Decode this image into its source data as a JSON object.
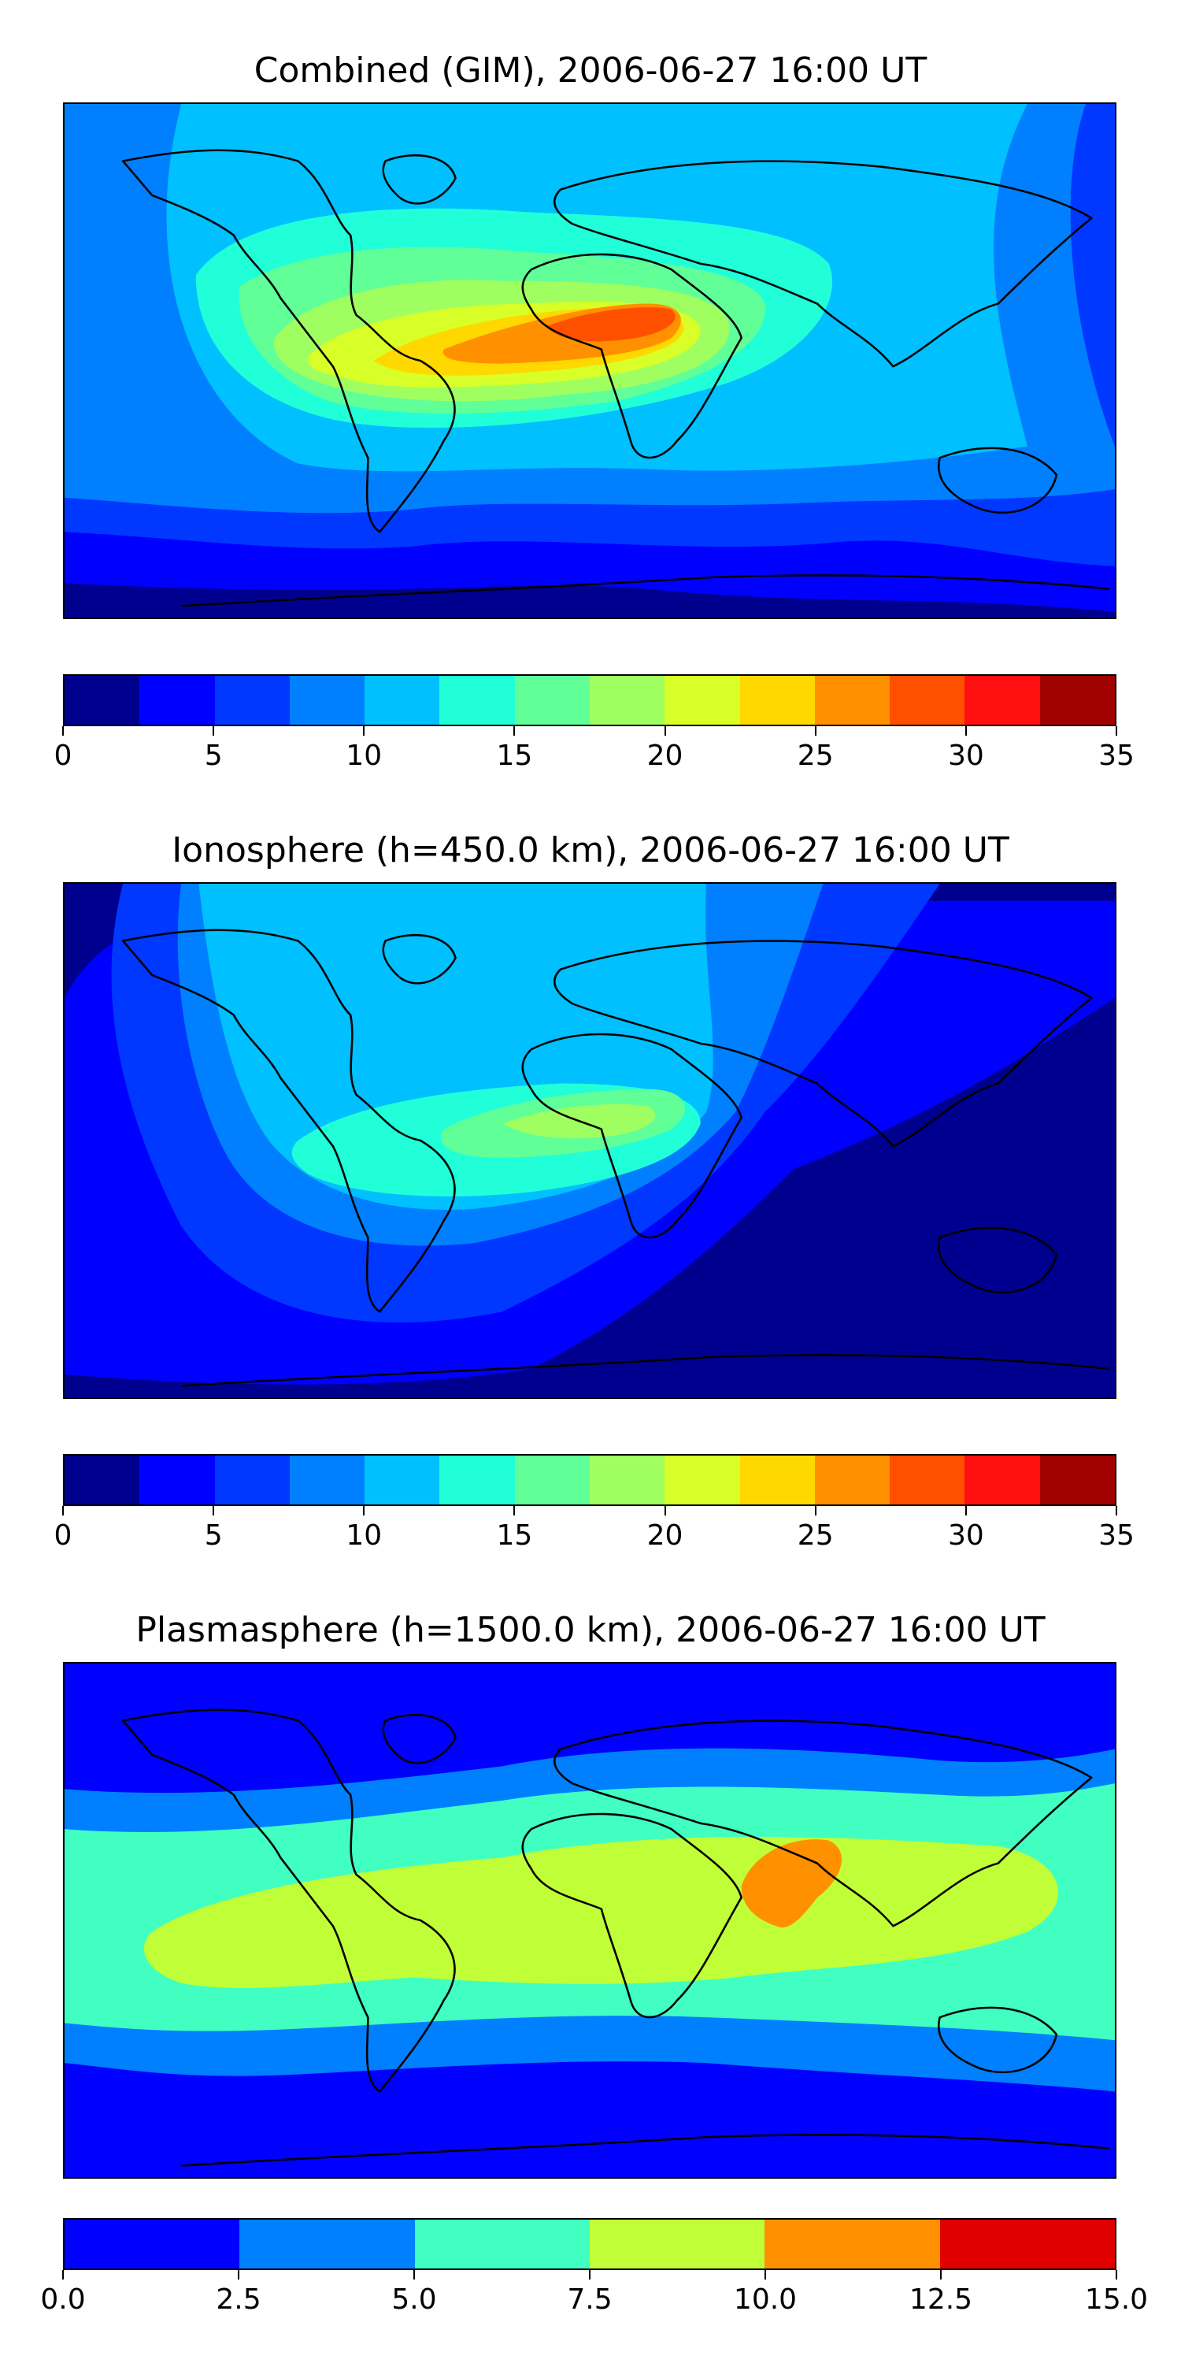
{
  "panels": [
    {
      "id": "combined",
      "title": "Combined (GIM), 2006-06-27 16:00 UT",
      "colorbar": {
        "colors": [
          "#00008f",
          "#0000ff",
          "#0038ff",
          "#0080ff",
          "#00c0ff",
          "#20ffd8",
          "#60ff98",
          "#a0ff60",
          "#d8ff28",
          "#ffd800",
          "#ff9000",
          "#ff5000",
          "#ff1010",
          "#a00000"
        ],
        "ticks": [
          "0",
          "5",
          "10",
          "15",
          "20",
          "25",
          "30",
          "35"
        ],
        "range": [
          0,
          35
        ]
      }
    },
    {
      "id": "ionosphere",
      "title": "Ionosphere  (h=450.0 km), 2006-06-27 16:00 UT",
      "colorbar": {
        "colors": [
          "#00008f",
          "#0000ff",
          "#0038ff",
          "#0080ff",
          "#00c0ff",
          "#20ffd8",
          "#60ff98",
          "#a0ff60",
          "#d8ff28",
          "#ffd800",
          "#ff9000",
          "#ff5000",
          "#ff1010",
          "#a00000"
        ],
        "ticks": [
          "0",
          "5",
          "10",
          "15",
          "20",
          "25",
          "30",
          "35"
        ],
        "range": [
          0,
          35
        ]
      }
    },
    {
      "id": "plasmasphere",
      "title": "Plasmasphere (h=1500.0 km), 2006-06-27 16:00 UT",
      "colorbar": {
        "colors": [
          "#0000ff",
          "#0080ff",
          "#40ffc0",
          "#c0ff38",
          "#ff9000",
          "#e00000"
        ],
        "ticks": [
          "0.0",
          "2.5",
          "5.0",
          "7.5",
          "10.0",
          "12.5",
          "15.0"
        ],
        "range": [
          0,
          15
        ]
      }
    }
  ]
}
